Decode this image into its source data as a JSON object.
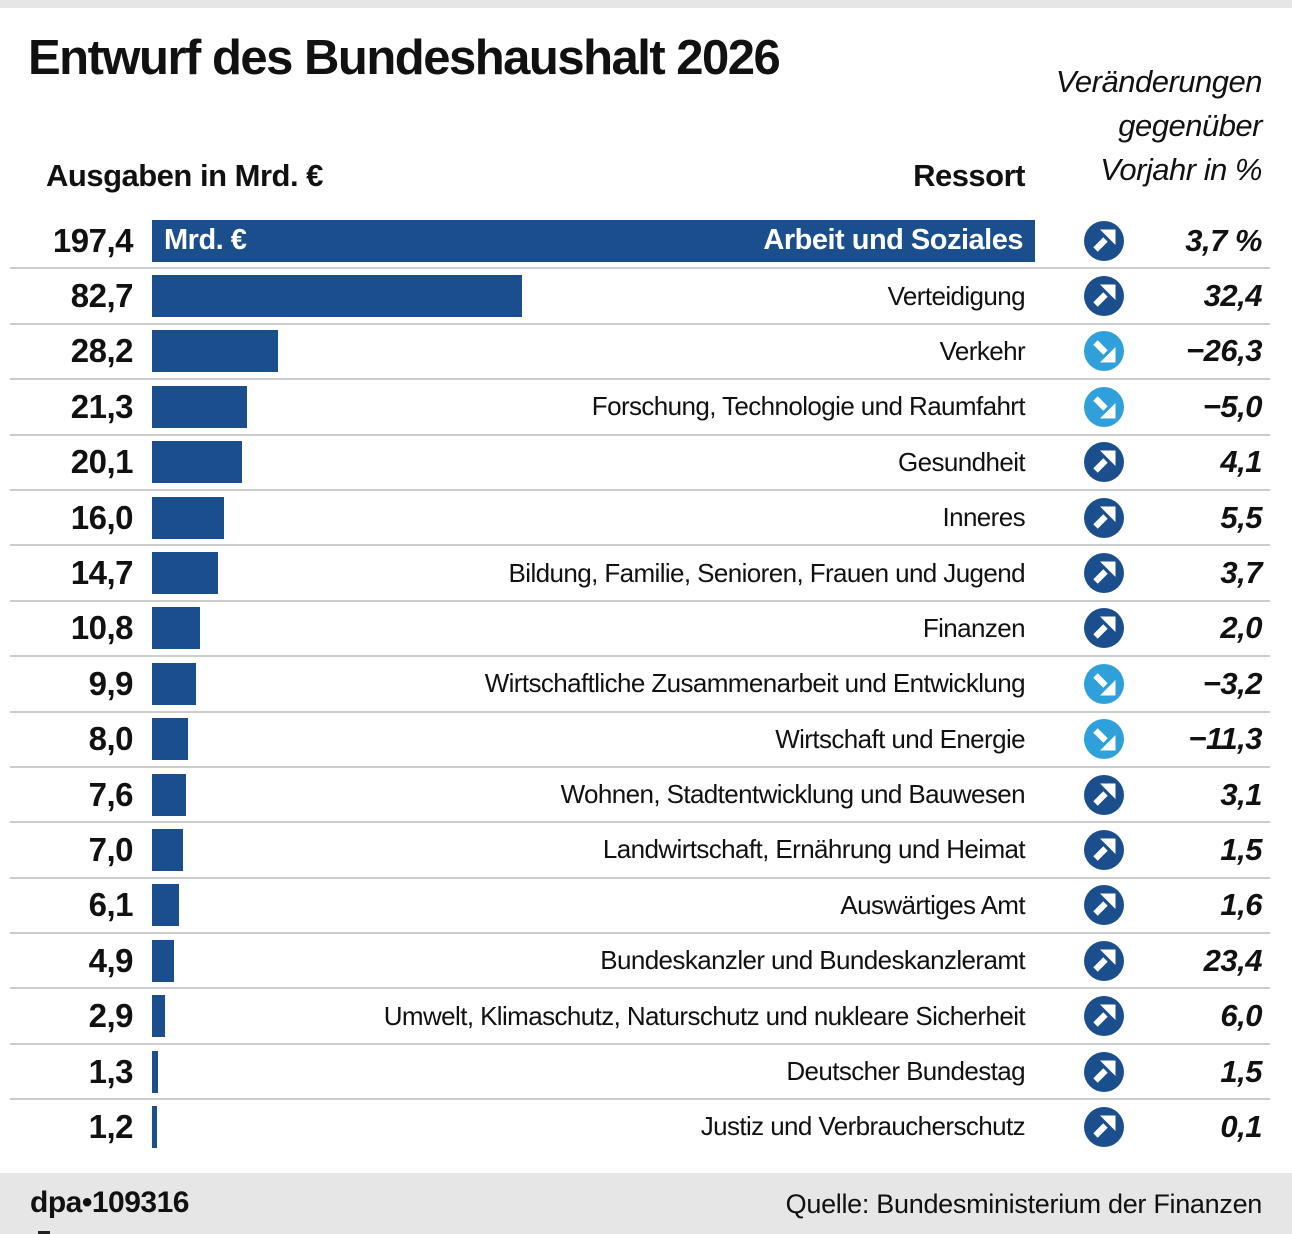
{
  "title": "Entwurf des Bundeshaushalt 2026",
  "col_left_header": "Ausgaben in Mrd. €",
  "col_right_header": "Ressort",
  "change_header_lines": [
    "Veränderungen",
    "gegenüber",
    "Vorjahr in %"
  ],
  "colors": {
    "bar": "#1b4e8c",
    "up_circle": "#1b4e8c",
    "down_circle": "#2fa0d9",
    "separator": "#cccccc",
    "footer_bg": "#e6e6e6"
  },
  "footer": {
    "credit": "dpa•109316",
    "source": "Quelle: Bundesministerium der Finanzen"
  },
  "chart_data": {
    "type": "bar",
    "orientation": "horizontal",
    "title": "Entwurf des Bundeshaushalt 2026",
    "unit": "Mrd. €",
    "bar_inline_unit_label": "Mrd. €",
    "xlabel": "Ausgaben in Mrd. €",
    "legend": "Veränderungen gegenüber Vorjahr in %",
    "max_value": 197.4,
    "xlim": [
      0,
      197.4
    ],
    "rows": [
      {
        "value": "197,4",
        "value_num": 197.4,
        "ressort": "Arbeit und Soziales",
        "direction": "up",
        "change": "3,7 %",
        "change_num": 3.7,
        "label_in_bar": true
      },
      {
        "value": "82,7",
        "value_num": 82.7,
        "ressort": "Verteidigung",
        "direction": "up",
        "change": "32,4",
        "change_num": 32.4,
        "label_in_bar": false
      },
      {
        "value": "28,2",
        "value_num": 28.2,
        "ressort": "Verkehr",
        "direction": "down",
        "change": "−26,3",
        "change_num": -26.3,
        "label_in_bar": false
      },
      {
        "value": "21,3",
        "value_num": 21.3,
        "ressort": "Forschung, Technologie und Raumfahrt",
        "direction": "down",
        "change": "−5,0",
        "change_num": -5.0,
        "label_in_bar": false
      },
      {
        "value": "20,1",
        "value_num": 20.1,
        "ressort": "Gesundheit",
        "direction": "up",
        "change": "4,1",
        "change_num": 4.1,
        "label_in_bar": false
      },
      {
        "value": "16,0",
        "value_num": 16.0,
        "ressort": "Inneres",
        "direction": "up",
        "change": "5,5",
        "change_num": 5.5,
        "label_in_bar": false
      },
      {
        "value": "14,7",
        "value_num": 14.7,
        "ressort": "Bildung, Familie, Senioren, Frauen und Jugend",
        "direction": "up",
        "change": "3,7",
        "change_num": 3.7,
        "label_in_bar": false
      },
      {
        "value": "10,8",
        "value_num": 10.8,
        "ressort": "Finanzen",
        "direction": "up",
        "change": "2,0",
        "change_num": 2.0,
        "label_in_bar": false
      },
      {
        "value": "9,9",
        "value_num": 9.9,
        "ressort": "Wirtschaftliche Zusammenarbeit und Entwicklung",
        "direction": "down",
        "change": "−3,2",
        "change_num": -3.2,
        "label_in_bar": false
      },
      {
        "value": "8,0",
        "value_num": 8.0,
        "ressort": "Wirtschaft und Energie",
        "direction": "down",
        "change": "−11,3",
        "change_num": -11.3,
        "label_in_bar": false
      },
      {
        "value": "7,6",
        "value_num": 7.6,
        "ressort": "Wohnen, Stadtentwicklung und Bauwesen",
        "direction": "up",
        "change": "3,1",
        "change_num": 3.1,
        "label_in_bar": false
      },
      {
        "value": "7,0",
        "value_num": 7.0,
        "ressort": "Landwirtschaft, Ernährung und Heimat",
        "direction": "up",
        "change": "1,5",
        "change_num": 1.5,
        "label_in_bar": false
      },
      {
        "value": "6,1",
        "value_num": 6.1,
        "ressort": "Auswärtiges Amt",
        "direction": "up",
        "change": "1,6",
        "change_num": 1.6,
        "label_in_bar": false
      },
      {
        "value": "4,9",
        "value_num": 4.9,
        "ressort": "Bundeskanzler und Bundeskanzleramt",
        "direction": "up",
        "change": "23,4",
        "change_num": 23.4,
        "label_in_bar": false
      },
      {
        "value": "2,9",
        "value_num": 2.9,
        "ressort": "Umwelt, Klimaschutz, Naturschutz und nukleare Sicherheit",
        "direction": "up",
        "change": "6,0",
        "change_num": 6.0,
        "label_in_bar": false
      },
      {
        "value": "1,3",
        "value_num": 1.3,
        "ressort": "Deutscher Bundestag",
        "direction": "up",
        "change": "1,5",
        "change_num": 1.5,
        "label_in_bar": false
      },
      {
        "value": "1,2",
        "value_num": 1.2,
        "ressort": "Justiz und Verbraucherschutz",
        "direction": "up",
        "change": "0,1",
        "change_num": 0.1,
        "label_in_bar": false
      }
    ]
  }
}
